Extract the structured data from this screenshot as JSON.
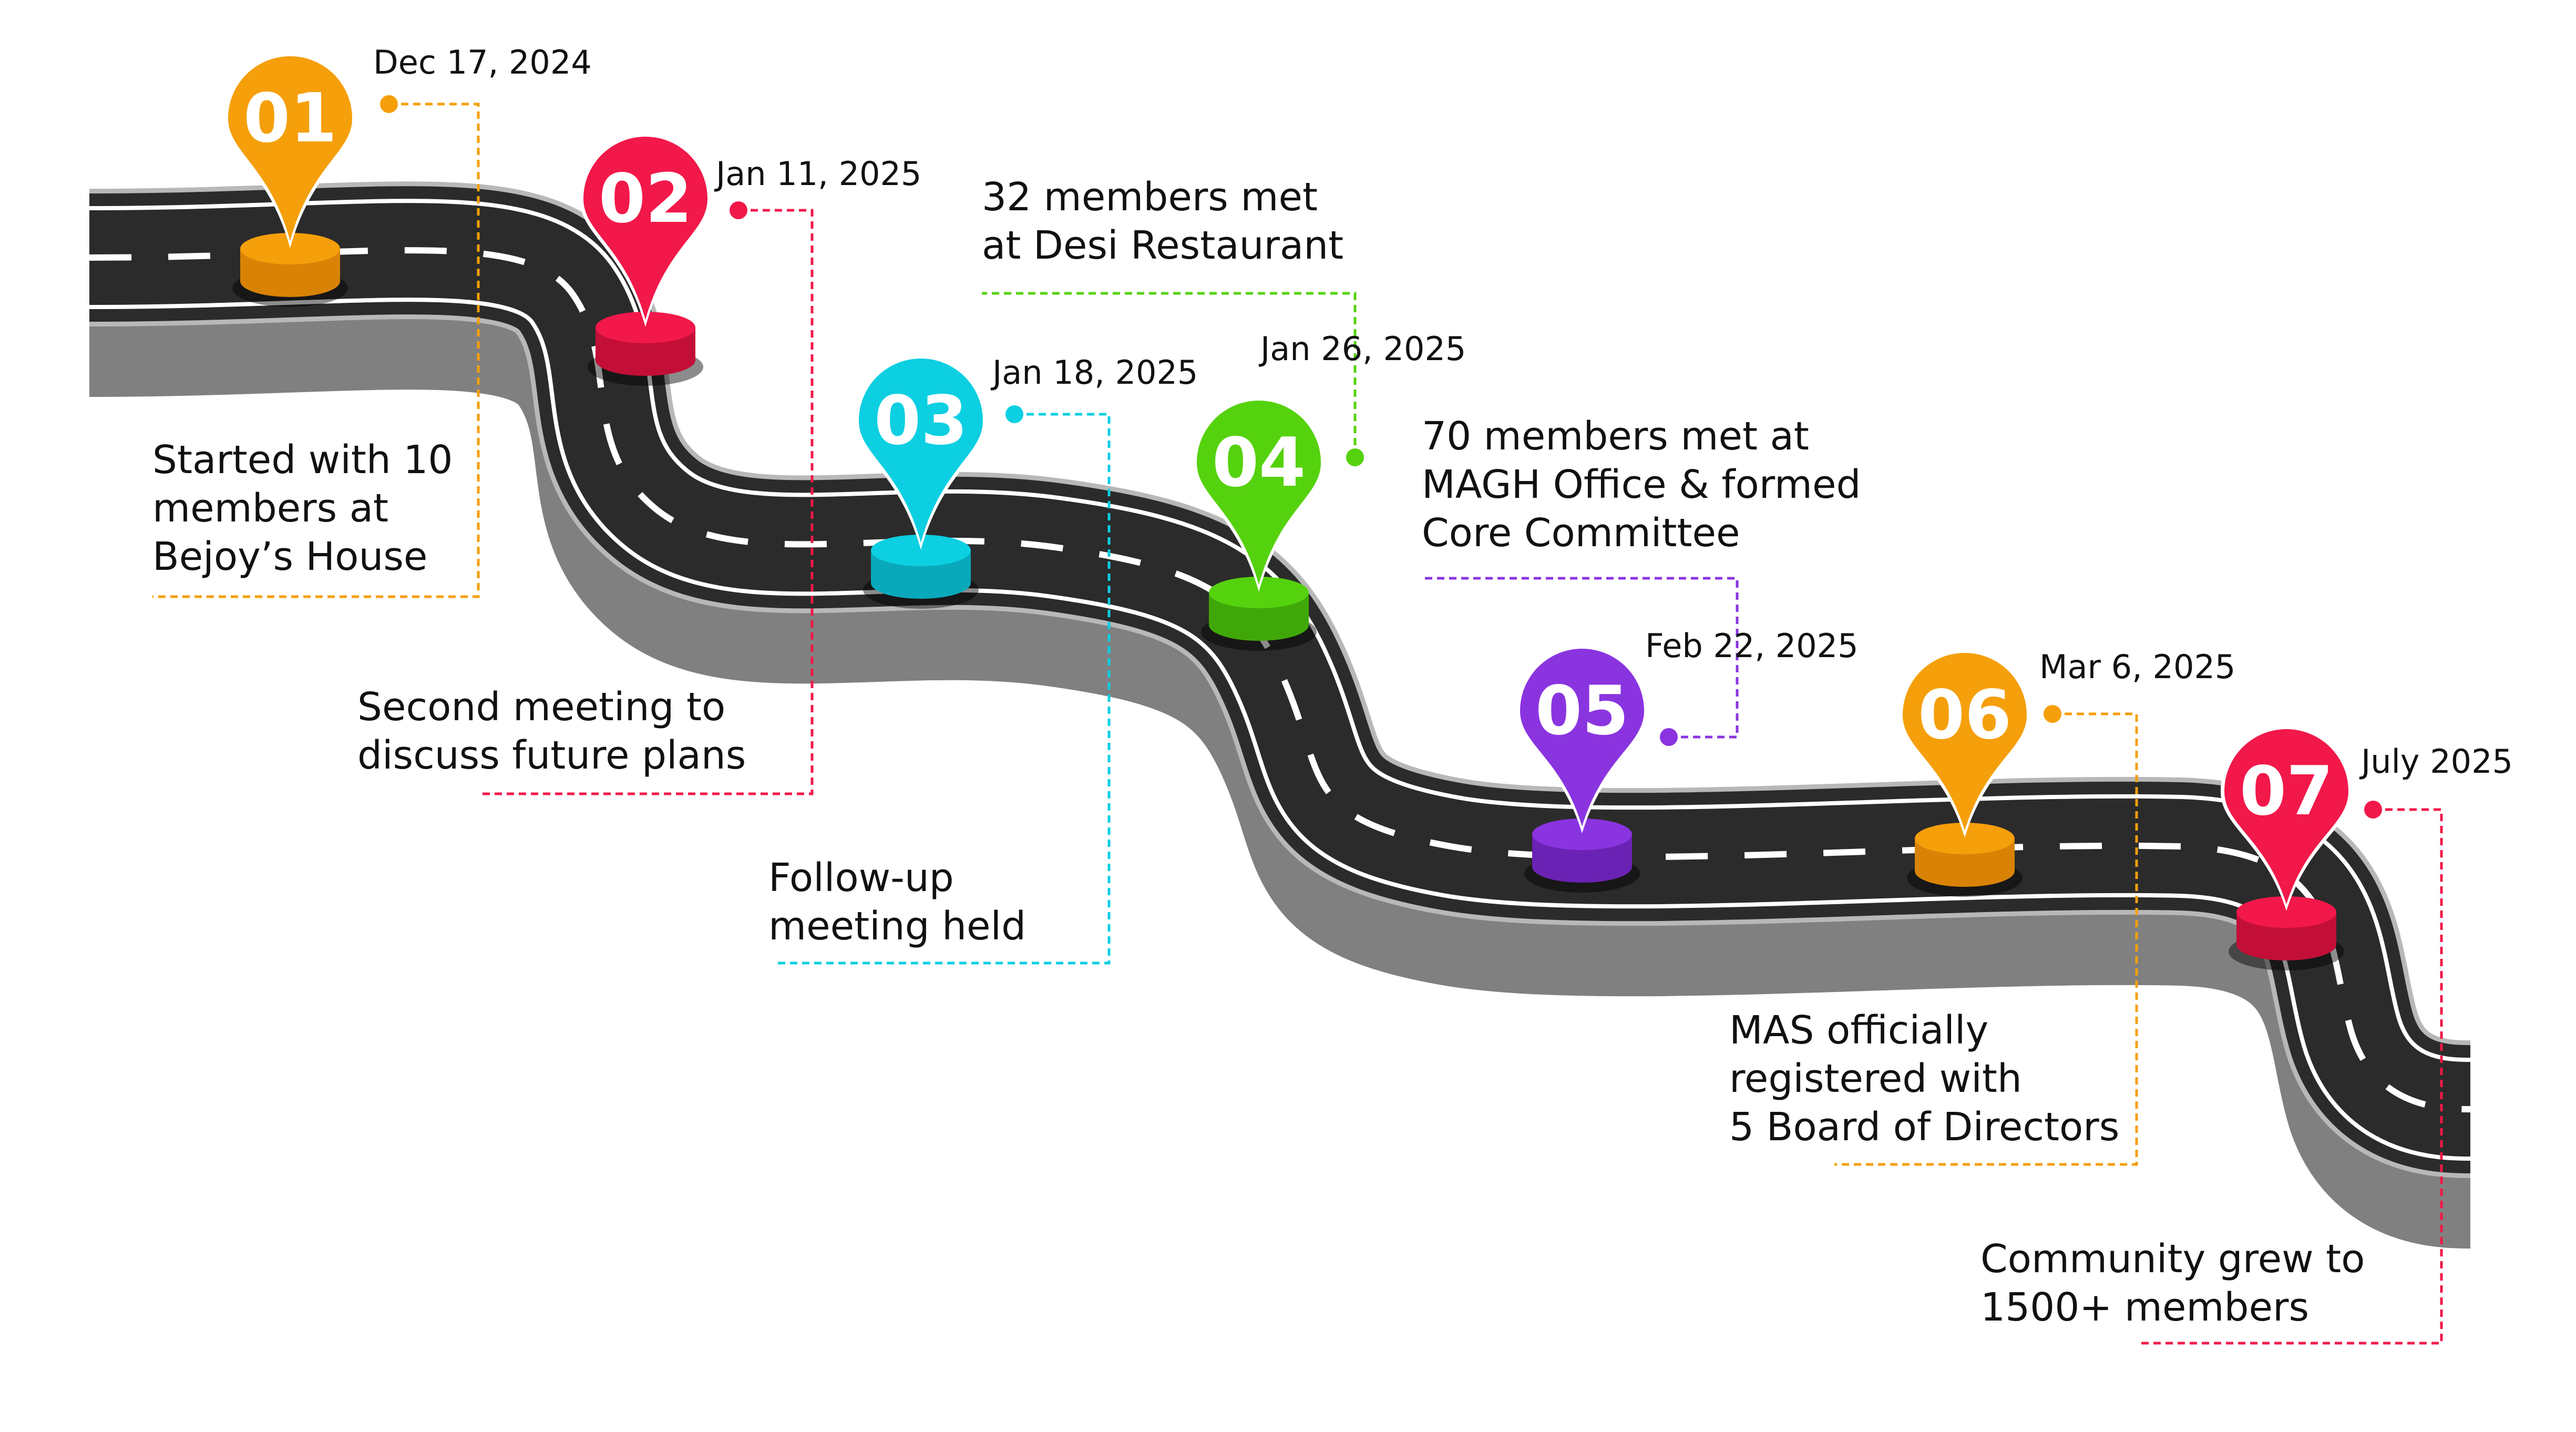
{
  "milestones": [
    {
      "number": "01",
      "date": "Dec 17, 2024",
      "color": "#F59F0A",
      "color_dark": "#D98306",
      "description": [
        "Started with 10",
        "members at",
        "Bejoy’s House"
      ]
    },
    {
      "number": "02",
      "date": "Jan 11, 2025",
      "color": "#F2184A",
      "color_dark": "#C30F37",
      "description": [
        "Second meeting to",
        "discuss future plans"
      ]
    },
    {
      "number": "03",
      "date": "Jan 18, 2025",
      "color": "#0CCFE2",
      "color_dark": "#09A9BB",
      "description": [
        "Follow-up",
        "meeting held"
      ]
    },
    {
      "number": "04",
      "date": "Jan 26, 2025",
      "color": "#55D20E",
      "color_dark": "#3FA808",
      "description": [
        "32 members met",
        "at Desi Restaurant"
      ]
    },
    {
      "number": "05",
      "date": "Feb 22, 2025",
      "color": "#8A34E0",
      "color_dark": "#6A22B4",
      "description": [
        "70 members met at",
        "MAGH Office & formed",
        "Core Committee"
      ]
    },
    {
      "number": "06",
      "date": "Mar 6, 2025",
      "color": "#F59F0A",
      "color_dark": "#D98306",
      "description": [
        "MAS officially",
        "registered with",
        "5 Board of Directors"
      ]
    },
    {
      "number": "07",
      "date": "July 2025",
      "color": "#F2184A",
      "color_dark": "#C30F37",
      "description": [
        "Community grew to",
        "1500+ members"
      ]
    }
  ],
  "road": {
    "asphalt": "#2B2B2B",
    "side": "#808080",
    "edge": "#B8B8B8",
    "line": "#FFFFFF"
  }
}
